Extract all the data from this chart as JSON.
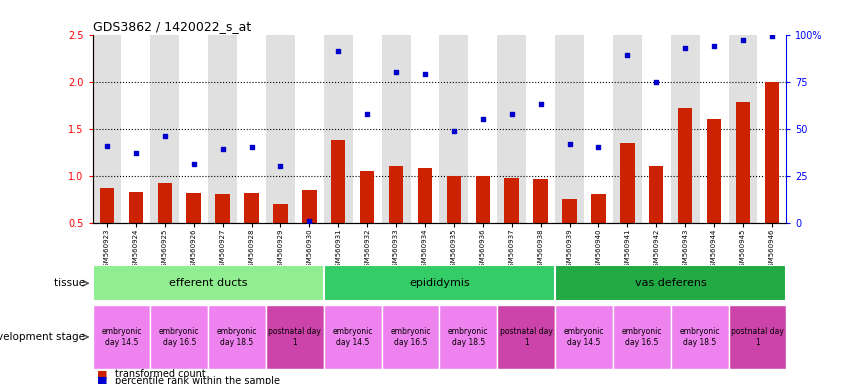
{
  "title": "GDS3862 / 1420022_s_at",
  "samples": [
    "GSM560923",
    "GSM560924",
    "GSM560925",
    "GSM560926",
    "GSM560927",
    "GSM560928",
    "GSM560929",
    "GSM560930",
    "GSM560931",
    "GSM560932",
    "GSM560933",
    "GSM560934",
    "GSM560935",
    "GSM560936",
    "GSM560937",
    "GSM560938",
    "GSM560939",
    "GSM560940",
    "GSM560941",
    "GSM560942",
    "GSM560943",
    "GSM560944",
    "GSM560945",
    "GSM560946"
  ],
  "bar_values": [
    0.87,
    0.83,
    0.92,
    0.82,
    0.8,
    0.82,
    0.7,
    0.85,
    1.38,
    1.05,
    1.1,
    1.08,
    1.0,
    1.0,
    0.98,
    0.97,
    0.75,
    0.8,
    1.35,
    1.1,
    1.72,
    1.6,
    1.78,
    2.0
  ],
  "scatter_values": [
    41,
    37,
    46,
    31,
    39,
    40,
    30,
    1,
    91,
    58,
    80,
    79,
    49,
    55,
    58,
    63,
    42,
    40,
    89,
    75,
    93,
    94,
    97,
    99
  ],
  "bar_color": "#CC2200",
  "scatter_color": "#0000CC",
  "ylim_left": [
    0.5,
    2.5
  ],
  "ylim_right": [
    0,
    100
  ],
  "yticks_left": [
    0.5,
    1.0,
    1.5,
    2.0,
    2.5
  ],
  "ytick_labels_left": [
    "0.5",
    "1.0",
    "1.5",
    "2.0",
    "2.5"
  ],
  "yticks_right": [
    0,
    25,
    50,
    75,
    100
  ],
  "ytick_labels_right": [
    "0",
    "25",
    "50",
    "75",
    "100%"
  ],
  "dotted_lines": [
    1.0,
    1.5,
    2.0
  ],
  "tissues": [
    {
      "label": "efferent ducts",
      "start": 0,
      "end": 8,
      "color": "#90EE90"
    },
    {
      "label": "epididymis",
      "start": 8,
      "end": 16,
      "color": "#33CC66"
    },
    {
      "label": "vas deferens",
      "start": 16,
      "end": 24,
      "color": "#22AA44"
    }
  ],
  "dev_stages": [
    {
      "label": "embryonic\nday 14.5",
      "start": 0,
      "end": 2,
      "color": "#EE82EE"
    },
    {
      "label": "embryonic\nday 16.5",
      "start": 2,
      "end": 4,
      "color": "#EE82EE"
    },
    {
      "label": "embryonic\nday 18.5",
      "start": 4,
      "end": 6,
      "color": "#EE82EE"
    },
    {
      "label": "postnatal day\n1",
      "start": 6,
      "end": 8,
      "color": "#CC44AA"
    },
    {
      "label": "embryonic\nday 14.5",
      "start": 8,
      "end": 10,
      "color": "#EE82EE"
    },
    {
      "label": "embryonic\nday 16.5",
      "start": 10,
      "end": 12,
      "color": "#EE82EE"
    },
    {
      "label": "embryonic\nday 18.5",
      "start": 12,
      "end": 14,
      "color": "#EE82EE"
    },
    {
      "label": "postnatal day\n1",
      "start": 14,
      "end": 16,
      "color": "#CC44AA"
    },
    {
      "label": "embryonic\nday 14.5",
      "start": 16,
      "end": 18,
      "color": "#EE82EE"
    },
    {
      "label": "embryonic\nday 16.5",
      "start": 18,
      "end": 20,
      "color": "#EE82EE"
    },
    {
      "label": "embryonic\nday 18.5",
      "start": 20,
      "end": 22,
      "color": "#EE82EE"
    },
    {
      "label": "postnatal day\n1",
      "start": 22,
      "end": 24,
      "color": "#CC44AA"
    }
  ],
  "bg_colors": [
    "#E0E0E0",
    "#FFFFFF"
  ],
  "legend_bar_label": "transformed count",
  "legend_scatter_label": "percentile rank within the sample",
  "tissue_label": "tissue",
  "dev_label": "development stage"
}
